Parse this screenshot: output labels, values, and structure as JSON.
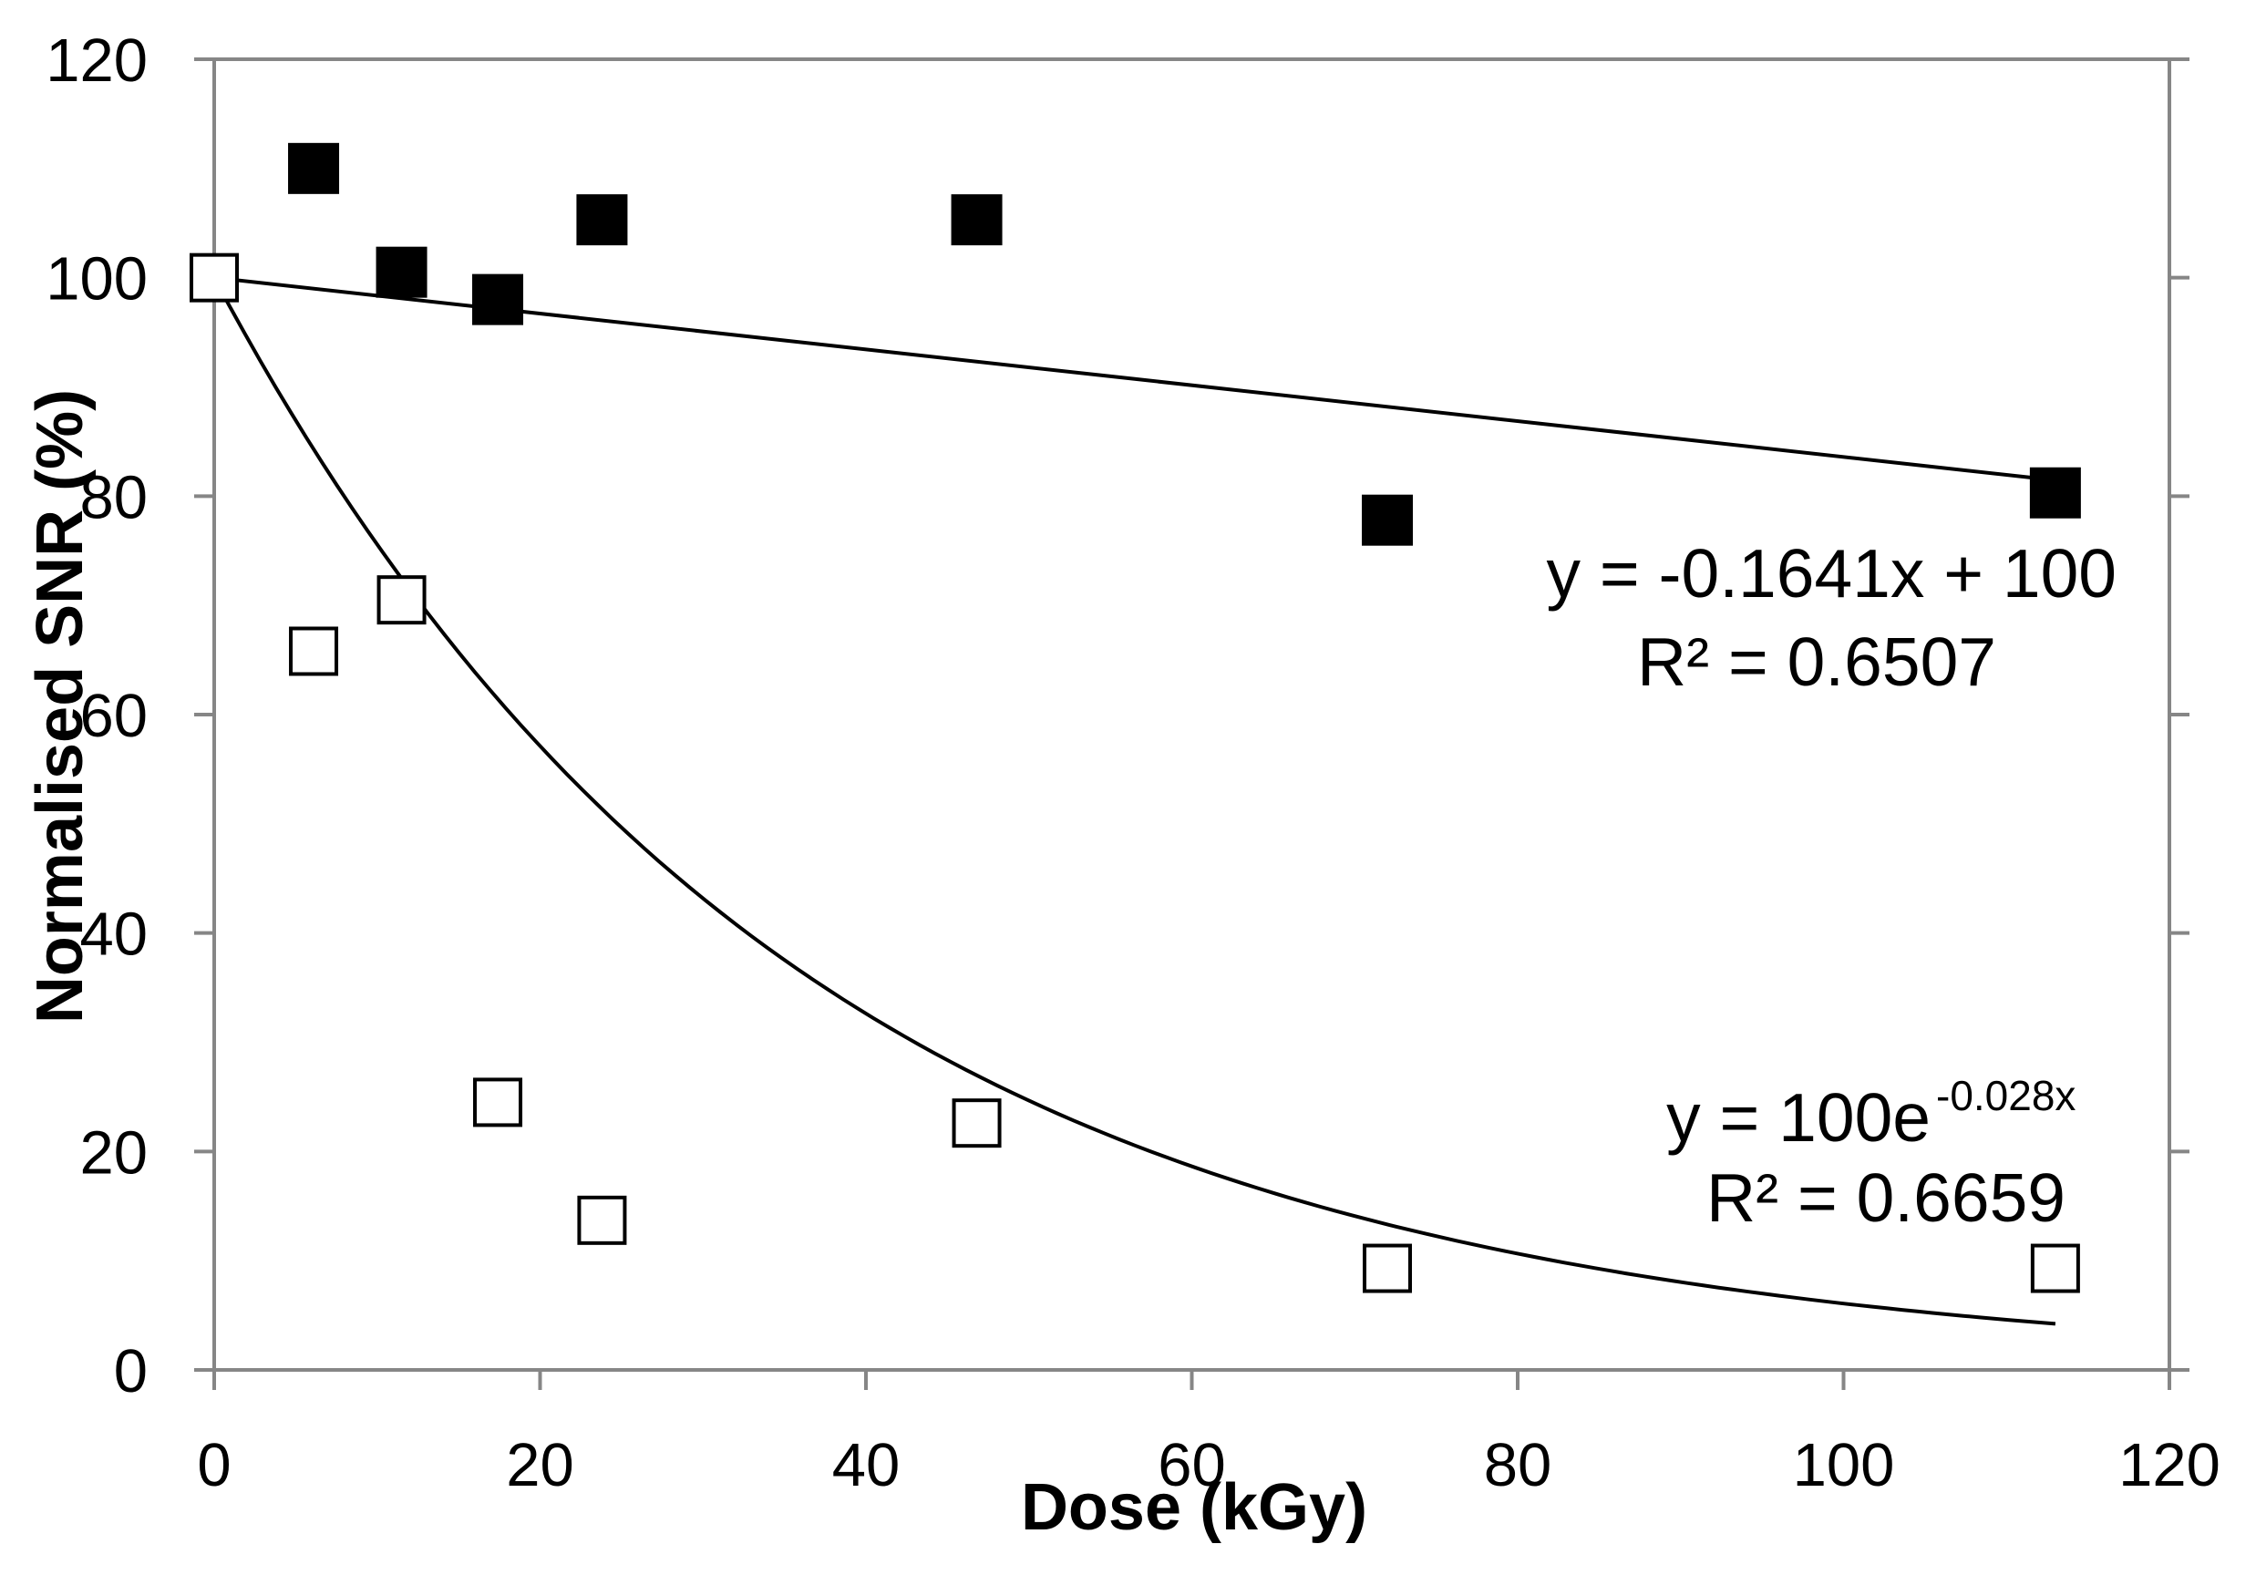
{
  "chart_data": {
    "type": "scatter",
    "title": "",
    "xlabel": "Dose (kGy)",
    "ylabel": "Normalised SNR (%)",
    "xlim": [
      0,
      120
    ],
    "ylim": [
      0,
      120
    ],
    "xticks": [
      0,
      20,
      40,
      60,
      80,
      100,
      120
    ],
    "yticks": [
      0,
      20,
      40,
      60,
      80,
      100,
      120
    ],
    "xtick_labels": [
      "0",
      "20",
      "40",
      "60",
      "80",
      "100",
      "120"
    ],
    "ytick_labels": [
      "0",
      "20",
      "40",
      "60",
      "80",
      "100",
      "120"
    ],
    "grid": false,
    "series": [
      {
        "name": "filled squares",
        "marker": "square-filled",
        "x": [
          6.1,
          11.5,
          17.4,
          23.8,
          46.8,
          72.0,
          113.0
        ],
        "y": [
          110.0,
          100.5,
          98.0,
          105.3,
          105.3,
          77.8,
          80.3
        ],
        "trendline": {
          "kind": "linear",
          "slope": -0.1641,
          "intercept": 100,
          "x_range": [
            0,
            113
          ],
          "equation": "y = -0.1641x + 100",
          "r2": "R² = 0.6507"
        }
      },
      {
        "name": "open squares",
        "marker": "square-open",
        "x": [
          0,
          6.1,
          11.5,
          17.4,
          23.8,
          46.8,
          72.0,
          113.0
        ],
        "y": [
          100.0,
          65.8,
          70.5,
          24.5,
          13.7,
          22.6,
          9.3,
          9.3
        ],
        "trendline": {
          "kind": "exponential",
          "coefficient": 100,
          "rate": -0.028,
          "x_range": [
            0,
            113
          ],
          "equation_base": "y = 100e",
          "equation_exponent": "-0.028x",
          "r2": "R² = 0.6659"
        }
      }
    ]
  },
  "colors": {
    "axis": "#868686",
    "marker": "#000000",
    "line": "#000000",
    "background": "#ffffff"
  }
}
